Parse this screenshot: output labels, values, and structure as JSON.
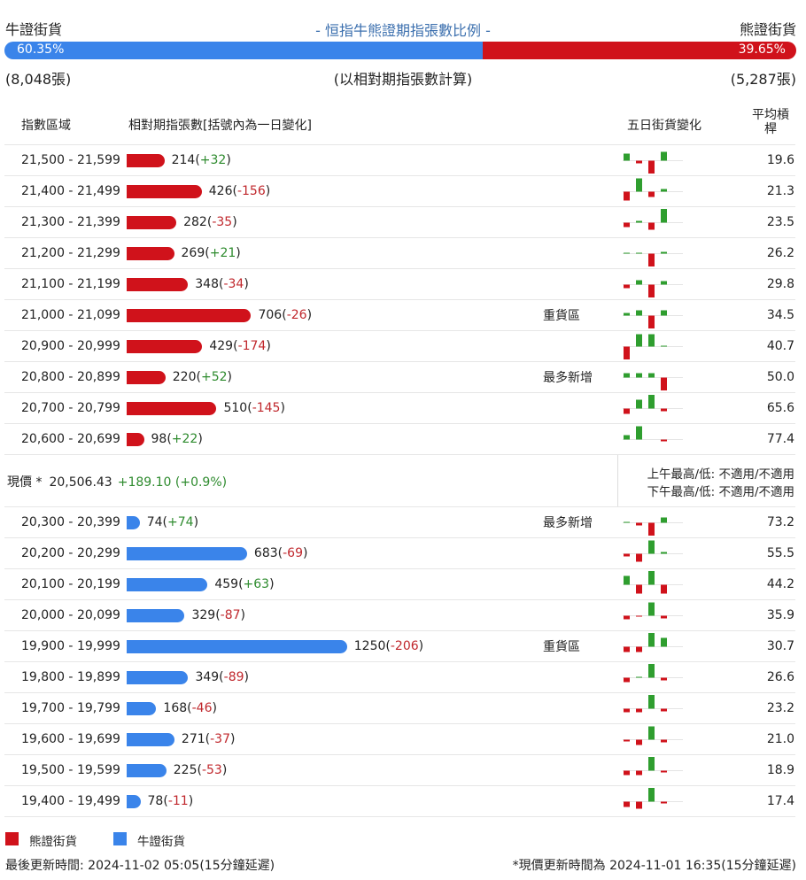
{
  "header": {
    "bull_label": "牛證街貨",
    "title": "- 恒指牛熊證期指張數比例 -",
    "bear_label": "熊證街貨",
    "bull_ratio": {
      "value": 60.35,
      "label": "60.35%"
    },
    "bear_ratio": {
      "value": 39.65,
      "label": "39.65%"
    },
    "bull_count": "(8,048張)",
    "note": "(以相對期指張數計算)",
    "bear_count": "(5,287張)"
  },
  "columns": [
    "指數區域",
    "相對期指張數[括號內為一日變化]",
    "五日街貨變化",
    "平均槓桿"
  ],
  "bear_rows": [
    {
      "range": "21,500 - 21,599",
      "count": 214,
      "change": "+32",
      "five_day": [
        8,
        -3,
        -16,
        10,
        0
      ],
      "leverage": "19.6"
    },
    {
      "range": "21,400 - 21,499",
      "count": 426,
      "change": "-156",
      "five_day": [
        -10,
        15,
        -6,
        3,
        0
      ],
      "leverage": "21.3"
    },
    {
      "range": "21,300 - 21,399",
      "count": 282,
      "change": "-35",
      "five_day": [
        -5,
        2,
        -8,
        16,
        0
      ],
      "leverage": "23.5"
    },
    {
      "range": "21,200 - 21,299",
      "count": 269,
      "change": "+21",
      "five_day": [
        1,
        1,
        -15,
        2,
        0
      ],
      "leverage": "26.2"
    },
    {
      "range": "21,100 - 21,199",
      "count": 348,
      "change": "-34",
      "five_day": [
        -4,
        5,
        -16,
        4,
        0
      ],
      "leverage": "29.8"
    },
    {
      "range": "21,000 - 21,099",
      "count": 706,
      "change": "-26",
      "tag": "重貨區",
      "five_day": [
        3,
        6,
        -16,
        6,
        0
      ],
      "leverage": "34.5"
    },
    {
      "range": "20,900 - 20,999",
      "count": 429,
      "change": "-174",
      "five_day": [
        -16,
        14,
        14,
        1,
        0
      ],
      "leverage": "40.7"
    },
    {
      "range": "20,800 - 20,899",
      "count": 220,
      "change": "+52",
      "tag": "最多新增",
      "five_day": [
        5,
        5,
        5,
        -15,
        0
      ],
      "leverage": "50.0"
    },
    {
      "range": "20,700 - 20,799",
      "count": 510,
      "change": "-145",
      "five_day": [
        -6,
        10,
        16,
        -3,
        0
      ],
      "leverage": "65.6"
    },
    {
      "range": "20,600 - 20,699",
      "count": 98,
      "change": "+22",
      "five_day": [
        5,
        15,
        0,
        -2,
        0
      ],
      "leverage": "77.4"
    }
  ],
  "price": {
    "label": "現價 *",
    "value": "20,506.43",
    "change": "+189.10 (+0.9%)",
    "am": "上午最高/低: 不適用/不適用",
    "pm": "下午最高/低: 不適用/不適用"
  },
  "bull_rows": [
    {
      "range": "20,300 - 20,399",
      "count": 74,
      "change": "+74",
      "tag": "最多新增",
      "five_day": [
        1,
        -3,
        -15,
        6,
        0
      ],
      "leverage": "73.2"
    },
    {
      "range": "20,200 - 20,299",
      "count": 683,
      "change": "-69",
      "five_day": [
        -3,
        -9,
        15,
        2,
        0
      ],
      "leverage": "55.5"
    },
    {
      "range": "20,100 - 20,199",
      "count": 459,
      "change": "+63",
      "five_day": [
        10,
        -10,
        16,
        -10,
        0
      ],
      "leverage": "44.2"
    },
    {
      "range": "20,000 - 20,099",
      "count": 329,
      "change": "-87",
      "five_day": [
        -4,
        -1,
        15,
        -3,
        0
      ],
      "leverage": "35.9"
    },
    {
      "range": "19,900 - 19,999",
      "count": 1250,
      "change": "-206",
      "tag": "重貨區",
      "five_day": [
        -6,
        -6,
        16,
        10,
        0
      ],
      "leverage": "30.7"
    },
    {
      "range": "19,800 - 19,899",
      "count": 349,
      "change": "-89",
      "five_day": [
        -5,
        1,
        16,
        -3,
        0
      ],
      "leverage": "26.6"
    },
    {
      "range": "19,700 - 19,799",
      "count": 168,
      "change": "-46",
      "five_day": [
        -4,
        -4,
        16,
        -3,
        0
      ],
      "leverage": "23.2"
    },
    {
      "range": "19,600 - 19,699",
      "count": 271,
      "change": "-37",
      "five_day": [
        -2,
        -6,
        15,
        -3,
        0
      ],
      "leverage": "21.0"
    },
    {
      "range": "19,500 - 19,599",
      "count": 225,
      "change": "-53",
      "five_day": [
        -5,
        -5,
        16,
        -2,
        0
      ],
      "leverage": "18.9"
    },
    {
      "range": "19,400 - 19,499",
      "count": 78,
      "change": "-11",
      "five_day": [
        -6,
        -8,
        16,
        -2,
        0
      ],
      "leverage": "17.4"
    }
  ],
  "legend": [
    {
      "name": "熊證街貨",
      "color": "#d0121b"
    },
    {
      "name": "牛證街貨",
      "color": "#3a84ea"
    }
  ],
  "footer": {
    "updated": "最後更新時間: 2024-11-02 05:05(15分鐘延遲)",
    "price_updated": "*現價更新時間為 2024-11-01 16:35(15分鐘延遲)"
  }
}
